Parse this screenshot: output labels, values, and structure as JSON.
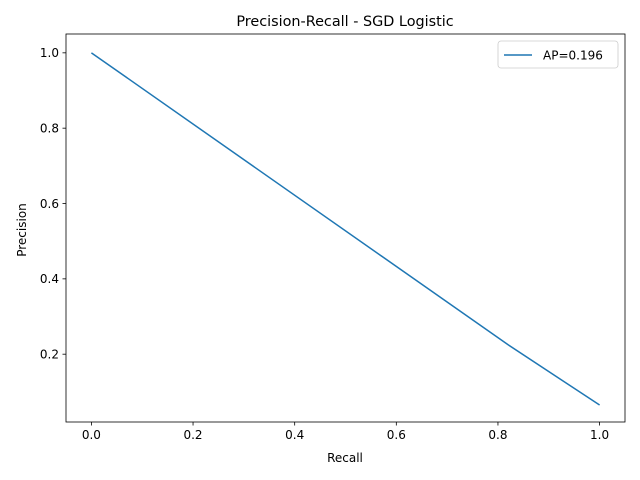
{
  "chart_data": {
    "type": "line",
    "title": "Precision-Recall - SGD Logistic",
    "xlabel": "Recall",
    "ylabel": "Precision",
    "xlim": [
      -0.05,
      1.05
    ],
    "ylim": [
      0.02,
      1.05
    ],
    "xticks": [
      0.0,
      0.2,
      0.4,
      0.6,
      0.8,
      1.0
    ],
    "xtick_labels": [
      "0.0",
      "0.2",
      "0.4",
      "0.6",
      "0.8",
      "1.0"
    ],
    "yticks": [
      0.2,
      0.4,
      0.6,
      0.8,
      1.0
    ],
    "ytick_labels": [
      "0.2",
      "0.4",
      "0.6",
      "0.8",
      "1.0"
    ],
    "grid": false,
    "legend_position": "top-right",
    "series": [
      {
        "name": "AP=0.196",
        "color": "#1f77b4",
        "x": [
          0.0,
          0.82,
          1.0
        ],
        "y": [
          1.0,
          0.225,
          0.065
        ]
      }
    ]
  }
}
